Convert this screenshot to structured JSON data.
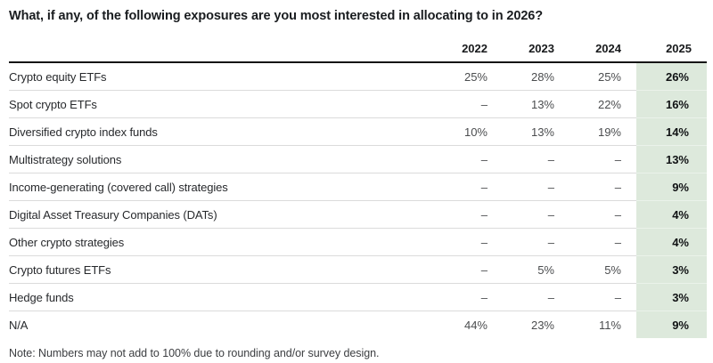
{
  "chart_data": {
    "type": "table",
    "title": "What, if any, of the following exposures are you most interested in allocating to in 2026?",
    "columns": [
      "2022",
      "2023",
      "2024",
      "2025"
    ],
    "highlighted_column": "2025",
    "values_unit": "percent",
    "missing_marker": "–",
    "rows": [
      {
        "label": "Crypto equity ETFs",
        "values": [
          "25%",
          "28%",
          "25%",
          "26%"
        ]
      },
      {
        "label": "Spot crypto ETFs",
        "values": [
          "–",
          "13%",
          "22%",
          "16%"
        ]
      },
      {
        "label": "Diversified crypto index funds",
        "values": [
          "10%",
          "13%",
          "19%",
          "14%"
        ]
      },
      {
        "label": "Multistrategy solutions",
        "values": [
          "–",
          "–",
          "–",
          "13%"
        ]
      },
      {
        "label": "Income-generating (covered call) strategies",
        "values": [
          "–",
          "–",
          "–",
          "9%"
        ]
      },
      {
        "label": "Digital Asset Treasury Companies (DATs)",
        "values": [
          "–",
          "–",
          "–",
          "4%"
        ]
      },
      {
        "label": "Other crypto strategies",
        "values": [
          "–",
          "–",
          "–",
          "4%"
        ]
      },
      {
        "label": "Crypto futures ETFs",
        "values": [
          "–",
          "5%",
          "5%",
          "3%"
        ]
      },
      {
        "label": "Hedge funds",
        "values": [
          "–",
          "–",
          "–",
          "3%"
        ]
      },
      {
        "label": "N/A",
        "values": [
          "44%",
          "23%",
          "11%",
          "9%"
        ]
      }
    ],
    "note": "Note: Numbers may not add to 100% due to rounding and/or survey design."
  },
  "colors": {
    "highlight_bg": "#dde9dc",
    "header_rule": "#151515",
    "row_divider": "#dbdbdb"
  }
}
